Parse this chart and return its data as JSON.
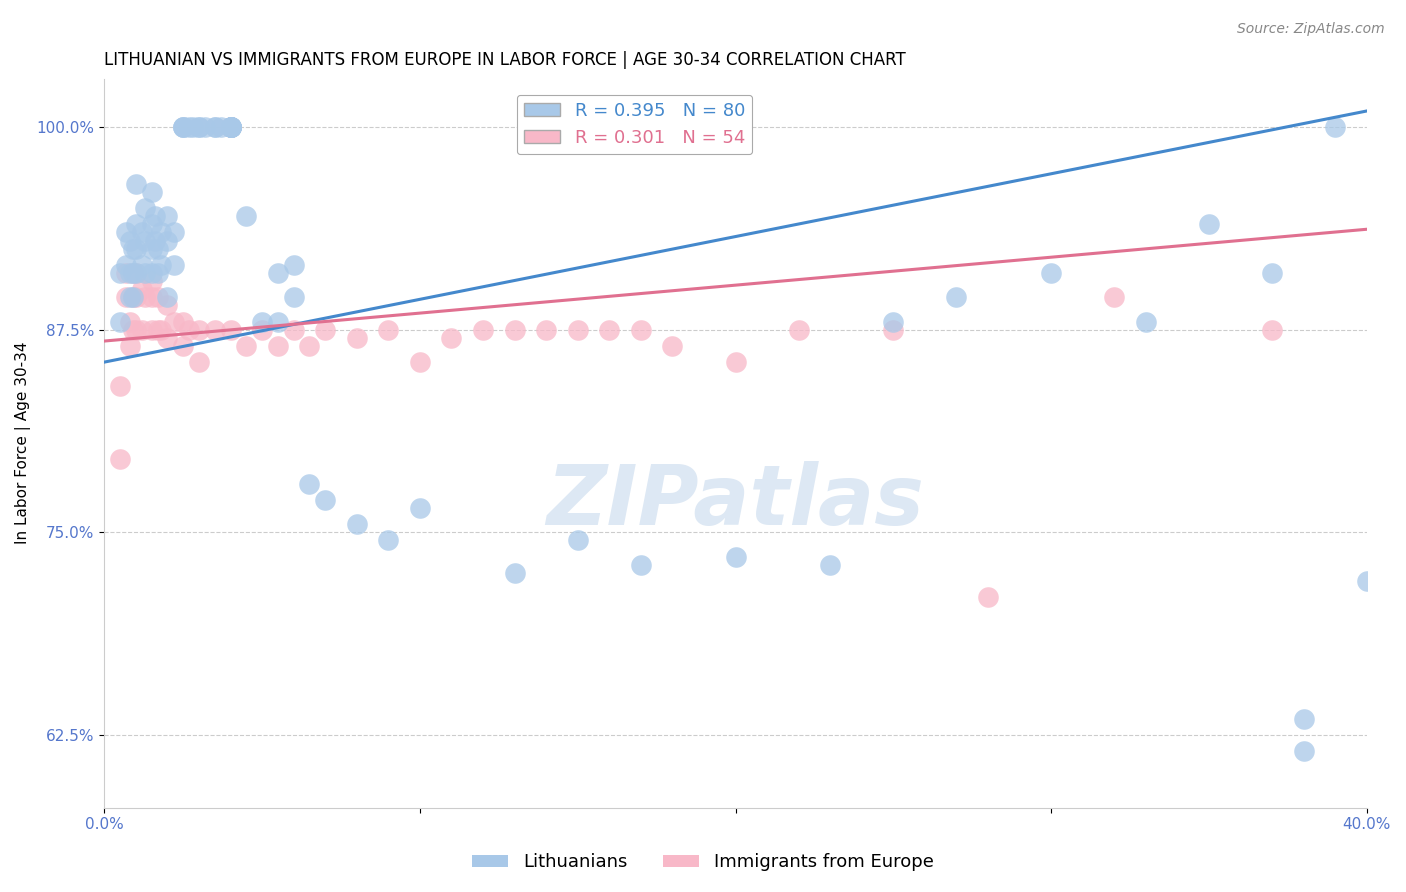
{
  "title": "LITHUANIAN VS IMMIGRANTS FROM EUROPE IN LABOR FORCE | AGE 30-34 CORRELATION CHART",
  "source": "Source: ZipAtlas.com",
  "ylabel": "In Labor Force | Age 30-34",
  "xlabel": "",
  "xlim": [
    0.0,
    0.4
  ],
  "ylim": [
    0.58,
    1.03
  ],
  "yticks": [
    0.625,
    0.75,
    0.875,
    1.0
  ],
  "ytick_labels": [
    "62.5%",
    "75.0%",
    "87.5%",
    "100.0%"
  ],
  "xticks": [
    0.0,
    0.1,
    0.2,
    0.3,
    0.4
  ],
  "xtick_labels": [
    "0.0%",
    "",
    "",
    "",
    "40.0%"
  ],
  "blue_R": 0.395,
  "blue_N": 80,
  "pink_R": 0.301,
  "pink_N": 54,
  "blue_color": "#a8c8e8",
  "pink_color": "#f8b8c8",
  "blue_line_color": "#4488cc",
  "pink_line_color": "#e07090",
  "blue_points_x": [
    0.005,
    0.005,
    0.007,
    0.007,
    0.008,
    0.008,
    0.008,
    0.009,
    0.009,
    0.009,
    0.01,
    0.01,
    0.01,
    0.01,
    0.012,
    0.012,
    0.013,
    0.013,
    0.013,
    0.015,
    0.015,
    0.015,
    0.015,
    0.016,
    0.016,
    0.017,
    0.017,
    0.018,
    0.018,
    0.02,
    0.02,
    0.02,
    0.022,
    0.022,
    0.025,
    0.025,
    0.025,
    0.027,
    0.028,
    0.03,
    0.03,
    0.032,
    0.035,
    0.035,
    0.037,
    0.04,
    0.04,
    0.04,
    0.04,
    0.04,
    0.04,
    0.04,
    0.04,
    0.04,
    0.045,
    0.05,
    0.055,
    0.055,
    0.06,
    0.06,
    0.065,
    0.07,
    0.08,
    0.09,
    0.1,
    0.13,
    0.15,
    0.17,
    0.2,
    0.23,
    0.25,
    0.27,
    0.3,
    0.33,
    0.35,
    0.37,
    0.38,
    0.38,
    0.39,
    0.4
  ],
  "blue_points_y": [
    0.91,
    0.88,
    0.935,
    0.915,
    0.93,
    0.91,
    0.895,
    0.925,
    0.91,
    0.895,
    0.965,
    0.94,
    0.925,
    0.91,
    0.935,
    0.915,
    0.95,
    0.93,
    0.91,
    0.96,
    0.94,
    0.925,
    0.91,
    0.945,
    0.93,
    0.925,
    0.91,
    0.935,
    0.915,
    0.945,
    0.93,
    0.895,
    0.935,
    0.915,
    1.0,
    1.0,
    1.0,
    1.0,
    1.0,
    1.0,
    1.0,
    1.0,
    1.0,
    1.0,
    1.0,
    1.0,
    1.0,
    1.0,
    1.0,
    1.0,
    1.0,
    1.0,
    1.0,
    1.0,
    0.945,
    0.88,
    0.91,
    0.88,
    0.915,
    0.895,
    0.78,
    0.77,
    0.755,
    0.745,
    0.765,
    0.725,
    0.745,
    0.73,
    0.735,
    0.73,
    0.88,
    0.895,
    0.91,
    0.88,
    0.94,
    0.91,
    0.635,
    0.615,
    1.0,
    0.72
  ],
  "pink_points_x": [
    0.005,
    0.005,
    0.007,
    0.007,
    0.008,
    0.008,
    0.009,
    0.009,
    0.009,
    0.01,
    0.01,
    0.01,
    0.012,
    0.012,
    0.013,
    0.015,
    0.015,
    0.015,
    0.017,
    0.017,
    0.018,
    0.02,
    0.02,
    0.022,
    0.025,
    0.025,
    0.027,
    0.03,
    0.03,
    0.035,
    0.04,
    0.045,
    0.05,
    0.055,
    0.06,
    0.065,
    0.07,
    0.08,
    0.09,
    0.1,
    0.11,
    0.12,
    0.13,
    0.14,
    0.15,
    0.16,
    0.17,
    0.18,
    0.2,
    0.22,
    0.25,
    0.28,
    0.32,
    0.37
  ],
  "pink_points_y": [
    0.84,
    0.795,
    0.91,
    0.895,
    0.88,
    0.865,
    0.91,
    0.895,
    0.875,
    0.91,
    0.895,
    0.875,
    0.9,
    0.875,
    0.895,
    0.905,
    0.895,
    0.875,
    0.895,
    0.875,
    0.875,
    0.89,
    0.87,
    0.88,
    0.88,
    0.865,
    0.875,
    0.875,
    0.855,
    0.875,
    0.875,
    0.865,
    0.875,
    0.865,
    0.875,
    0.865,
    0.875,
    0.87,
    0.875,
    0.855,
    0.87,
    0.875,
    0.875,
    0.875,
    0.875,
    0.875,
    0.875,
    0.865,
    0.855,
    0.875,
    0.875,
    0.71,
    0.895,
    0.875
  ],
  "background_color": "#ffffff",
  "grid_color": "#cccccc",
  "tick_label_color": "#5577cc",
  "title_fontsize": 12,
  "source_fontsize": 10,
  "axis_label_fontsize": 11,
  "tick_fontsize": 11,
  "legend_fontsize": 13,
  "watermark_text": "ZIPatlas",
  "watermark_color": "#dde8f4",
  "watermark_fontsize": 60
}
